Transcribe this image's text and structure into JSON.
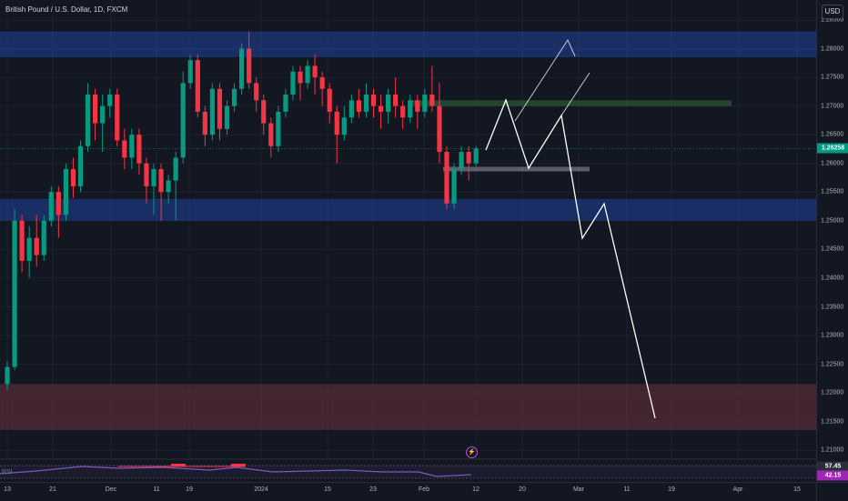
{
  "header": {
    "symbol_title": "British Pound / U.S. Dollar, 1D, FXCM",
    "currency": "USD"
  },
  "price_axis": {
    "labels": [
      "1.28500",
      "1.28000",
      "1.27500",
      "1.27000",
      "1.26500",
      "1.26000",
      "1.25500",
      "1.25000",
      "1.24500",
      "1.24000",
      "1.23500",
      "1.23000",
      "1.22500",
      "1.22000",
      "1.21500",
      "1.21000"
    ],
    "current_price": "1.26258",
    "current_price_value": 1.26258,
    "rsi_upper_value": "57.45",
    "rsi_value": "42.15",
    "colors": {
      "current": "#089981",
      "rsi_upper": "#131722",
      "rsi": "#9c27b0"
    }
  },
  "time_axis": {
    "labels": [
      "13",
      "21",
      "Dec",
      "11",
      "19",
      "2024",
      "15",
      "23",
      "Feb",
      "12",
      "20",
      "Mar",
      "11",
      "19",
      "Apr",
      "15"
    ]
  },
  "rsi_panel": {
    "label": "RSI"
  },
  "zones": [
    {
      "name": "resistance-zone-top",
      "from": 1.2785,
      "to": 1.283,
      "color": "#2962ff"
    },
    {
      "name": "target-zone-green",
      "from": 1.27,
      "to": 1.271,
      "color": "#4caf50"
    },
    {
      "name": "support-zone-mid",
      "from": 1.25,
      "to": 1.2538,
      "color": "#2962ff"
    },
    {
      "name": "demand-zone-bottom",
      "from": 1.2135,
      "to": 1.2215,
      "color": "#b2475a"
    }
  ],
  "colors": {
    "bull": "#089981",
    "bear": "#f23645",
    "projection": "#ffffff",
    "background": "#131722"
  }
}
